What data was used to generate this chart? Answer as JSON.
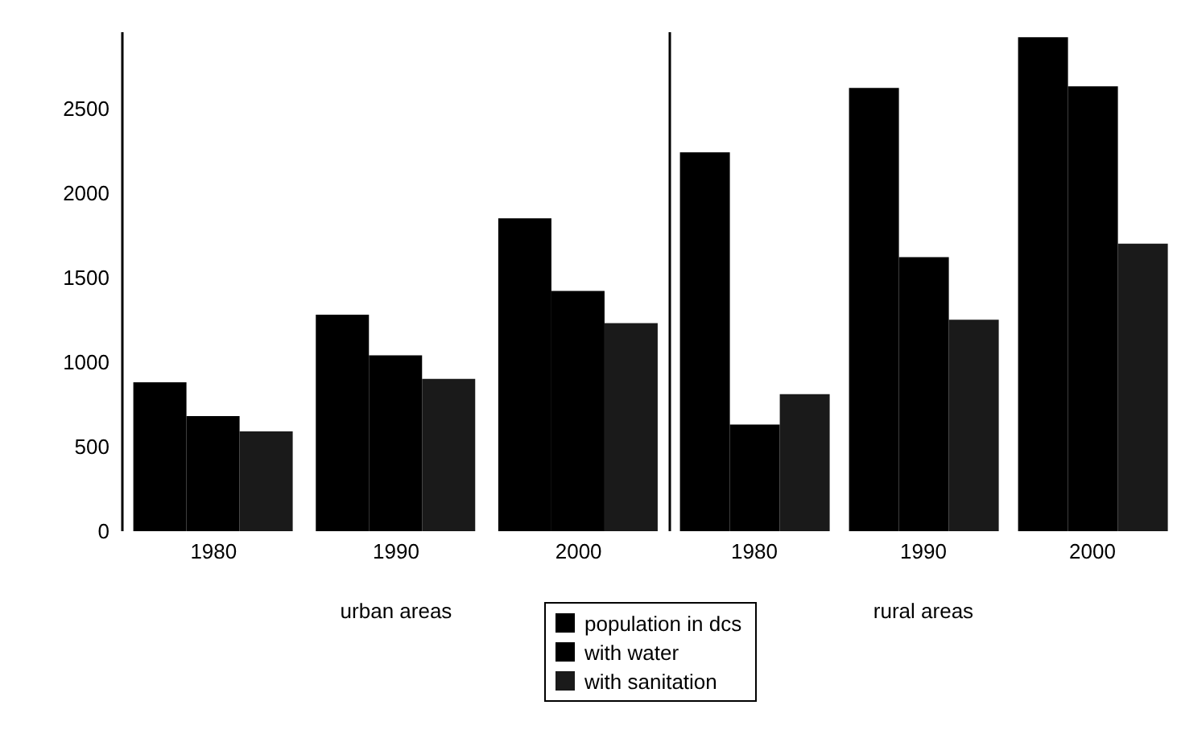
{
  "chart_data": [
    {
      "type": "bar",
      "categories": [
        "1980",
        "1990",
        "2000"
      ],
      "xlabel": "urban areas",
      "ylim": [
        0,
        2950
      ],
      "yticks": [
        0,
        500,
        1000,
        1500,
        2000,
        2500
      ],
      "legend": "bottom",
      "series": [
        {
          "name": "population in dcs",
          "color": "#000000",
          "values": [
            880,
            1280,
            1850
          ]
        },
        {
          "name": "with water",
          "color": "#000000",
          "values": [
            680,
            1040,
            1420
          ]
        },
        {
          "name": "with sanitation",
          "color": "#1a1a1a",
          "values": [
            590,
            900,
            1230
          ]
        }
      ]
    },
    {
      "type": "bar",
      "categories": [
        "1980",
        "1990",
        "2000"
      ],
      "xlabel": "rural areas",
      "ylim": [
        0,
        2950
      ],
      "tick_labels": "x",
      "series": [
        {
          "color": "#000000",
          "values": [
            2240,
            2620,
            2920
          ]
        },
        {
          "color": "#000000",
          "values": [
            630,
            1620,
            2630
          ]
        },
        {
          "color": "#1a1a1a",
          "values": [
            810,
            1250,
            1700
          ]
        }
      ]
    }
  ]
}
